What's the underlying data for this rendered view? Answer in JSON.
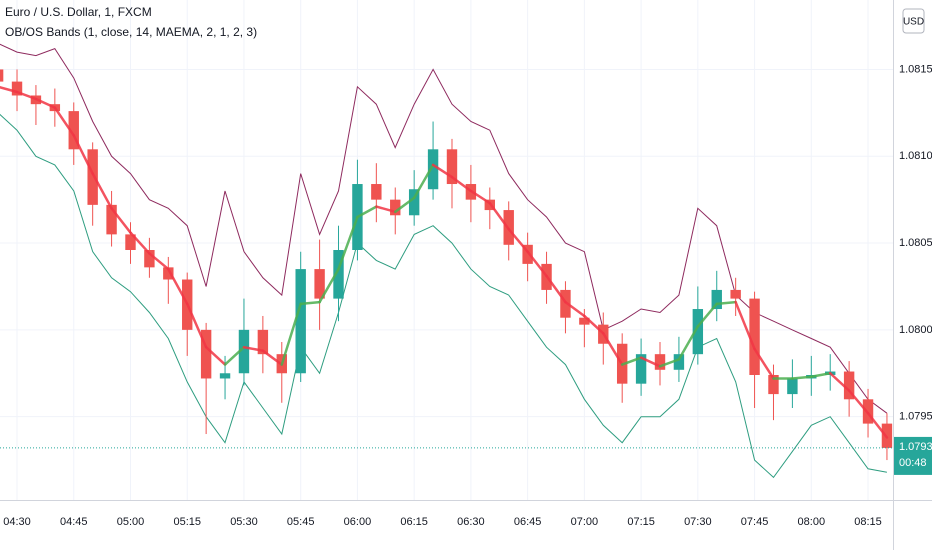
{
  "chart_data": {
    "type": "candlestick",
    "title": "Euro / U.S. Dollar, 1, FXCM",
    "indicator": "OB/OS Bands (1, close, 14, MAEMA, 2, 1, 2, 3)",
    "currency": "USD",
    "x": [
      265,
      270,
      275,
      280,
      285,
      290,
      295,
      300,
      305,
      310,
      315,
      320,
      325,
      330,
      335,
      340,
      345,
      350,
      355,
      360,
      365,
      370,
      375,
      380,
      385,
      390,
      395,
      400,
      405,
      410,
      415,
      420,
      425,
      430,
      435,
      440,
      445,
      450,
      455,
      460,
      465,
      470,
      475,
      480,
      485,
      490,
      495,
      500
    ],
    "open": [
      1.0815,
      1.08143,
      1.08135,
      1.0813,
      1.08126,
      1.08104,
      1.08072,
      1.08055,
      1.08046,
      1.08036,
      1.08029,
      1.08,
      1.07972,
      1.07975,
      1.08,
      1.07986,
      1.07975,
      1.08035,
      1.08018,
      1.08046,
      1.08084,
      1.08075,
      1.08066,
      1.08081,
      1.08104,
      1.08084,
      1.08075,
      1.08069,
      1.08049,
      1.08038,
      1.08023,
      1.08007,
      1.08003,
      1.07992,
      1.07969,
      1.07986,
      1.07977,
      1.07986,
      1.08012,
      1.08023,
      1.08018,
      1.07974,
      1.07963,
      1.07972,
      1.07974,
      1.07976,
      1.0796,
      1.07946
    ],
    "high": [
      1.08156,
      1.0815,
      1.08141,
      1.08139,
      1.08131,
      1.08108,
      1.0808,
      1.08062,
      1.08053,
      1.08042,
      1.08033,
      1.08004,
      1.07985,
      1.08018,
      1.08008,
      1.07993,
      1.08045,
      1.08052,
      1.0806,
      1.08098,
      1.08096,
      1.08082,
      1.08092,
      1.0812,
      1.0811,
      1.08095,
      1.08082,
      1.08074,
      1.08056,
      1.08045,
      1.08028,
      1.08012,
      1.0801,
      1.07998,
      1.07995,
      1.07993,
      1.07996,
      1.08025,
      1.08034,
      1.0803,
      1.08022,
      1.0798,
      1.07983,
      1.07985,
      1.07986,
      1.07982,
      1.07966,
      1.07952
    ],
    "low": [
      1.08138,
      1.08126,
      1.08118,
      1.08117,
      1.08095,
      1.0806,
      1.08048,
      1.08038,
      1.0803,
      1.08015,
      1.07985,
      1.0794,
      1.0796,
      1.07968,
      1.07975,
      1.07958,
      1.0797,
      1.08,
      1.08005,
      1.0804,
      1.08062,
      1.08055,
      1.0806,
      1.08075,
      1.0807,
      1.08062,
      1.08058,
      1.0804,
      1.08028,
      1.08015,
      1.07998,
      1.0799,
      1.0798,
      1.07958,
      1.07962,
      1.07968,
      1.0797,
      1.0798,
      1.08005,
      1.08008,
      1.07955,
      1.07948,
      1.07955,
      1.07962,
      1.07965,
      1.0795,
      1.07938,
      1.07925
    ],
    "close": [
      1.08143,
      1.08135,
      1.0813,
      1.08126,
      1.08104,
      1.08072,
      1.08055,
      1.08046,
      1.08036,
      1.08029,
      1.08,
      1.07972,
      1.07975,
      1.08,
      1.07986,
      1.07975,
      1.08035,
      1.08018,
      1.08046,
      1.08084,
      1.08075,
      1.08066,
      1.08081,
      1.08104,
      1.08084,
      1.08075,
      1.08069,
      1.08049,
      1.08038,
      1.08023,
      1.08007,
      1.08003,
      1.07992,
      1.07969,
      1.07986,
      1.07977,
      1.07986,
      1.08012,
      1.08023,
      1.08018,
      1.07974,
      1.07963,
      1.07972,
      1.07974,
      1.07976,
      1.0796,
      1.07946,
      1.07932
    ],
    "upper": [
      1.08165,
      1.0816,
      1.08158,
      1.08162,
      1.08145,
      1.0812,
      1.081,
      1.0809,
      1.08075,
      1.0807,
      1.0806,
      1.08025,
      1.0808,
      1.08045,
      1.0803,
      1.0802,
      1.0809,
      1.08055,
      1.0808,
      1.0814,
      1.0813,
      1.08105,
      1.0813,
      1.0815,
      1.0813,
      1.0812,
      1.08115,
      1.0809,
      1.08075,
      1.08065,
      1.0805,
      1.08045,
      1.08,
      1.08005,
      1.08012,
      1.0801,
      1.0802,
      1.0807,
      1.0806,
      1.0802,
      1.0801,
      1.08005,
      1.08,
      1.07995,
      1.0799,
      1.07975,
      1.0796,
      1.07952
    ],
    "basis": [
      1.0814,
      1.08137,
      1.08133,
      1.08128,
      1.08112,
      1.0809,
      1.0807,
      1.08056,
      1.08044,
      1.08035,
      1.08015,
      1.0799,
      1.0798,
      1.0799,
      1.07988,
      1.0798,
      1.08015,
      1.08016,
      1.08035,
      1.08065,
      1.08071,
      1.08068,
      1.08076,
      1.08095,
      1.08088,
      1.0808,
      1.08073,
      1.08058,
      1.08045,
      1.08031,
      1.08016,
      1.08008,
      1.07998,
      1.0798,
      1.07984,
      1.07979,
      1.07983,
      1.08002,
      1.08015,
      1.08016,
      1.07989,
      1.07972,
      1.07972,
      1.07973,
      1.07975,
      1.07965,
      1.07952,
      1.07938
    ],
    "lower": [
      1.08125,
      1.08115,
      1.081,
      1.08095,
      1.0808,
      1.08045,
      1.0803,
      1.08022,
      1.0801,
      1.07995,
      1.0797,
      1.0795,
      1.07935,
      1.0797,
      1.07955,
      1.0794,
      1.0799,
      1.07975,
      1.0801,
      1.0805,
      1.0804,
      1.08035,
      1.08055,
      1.0806,
      1.0805,
      1.08035,
      1.08025,
      1.0802,
      1.08005,
      1.0799,
      1.0798,
      1.0796,
      1.07945,
      1.07935,
      1.0795,
      1.0795,
      1.0796,
      1.0799,
      1.07995,
      1.0797,
      1.07925,
      1.07915,
      1.0793,
      1.07945,
      1.0795,
      1.07935,
      1.0792,
      1.07918
    ],
    "up_color": "#26a69a",
    "down_color": "#ef5350",
    "upper_color": "#8e2a5e",
    "lower_color": "#2e9d80",
    "basis_rise_color": "#4caf50",
    "basis_fall_color": "#f23645",
    "xlim": [
      265.5,
      501.6
    ],
    "ylim": [
      1.07902,
      1.0819
    ],
    "xticks": [
      {
        "value": 270,
        "label": "04:30"
      },
      {
        "value": 285,
        "label": "04:45"
      },
      {
        "value": 300,
        "label": "05:00"
      },
      {
        "value": 315,
        "label": "05:15"
      },
      {
        "value": 330,
        "label": "05:30"
      },
      {
        "value": 345,
        "label": "05:45"
      },
      {
        "value": 360,
        "label": "06:00"
      },
      {
        "value": 375,
        "label": "06:15"
      },
      {
        "value": 390,
        "label": "06:30"
      },
      {
        "value": 405,
        "label": "06:45"
      },
      {
        "value": 420,
        "label": "07:00"
      },
      {
        "value": 435,
        "label": "07:15"
      },
      {
        "value": 450,
        "label": "07:30"
      },
      {
        "value": 465,
        "label": "07:45"
      },
      {
        "value": 480,
        "label": "08:00"
      },
      {
        "value": 495,
        "label": "08:15"
      }
    ],
    "yticks": [
      {
        "value": 1.0795,
        "label": "1.07950"
      },
      {
        "value": 1.08,
        "label": "1.08000"
      },
      {
        "value": 1.0805,
        "label": "1.08050"
      },
      {
        "value": 1.081,
        "label": "1.08100"
      },
      {
        "value": 1.0815,
        "label": "1.08150"
      }
    ],
    "grid": true,
    "last_price": 1.07932,
    "countdown": "00:48",
    "last_price_color": "#26a69a"
  }
}
